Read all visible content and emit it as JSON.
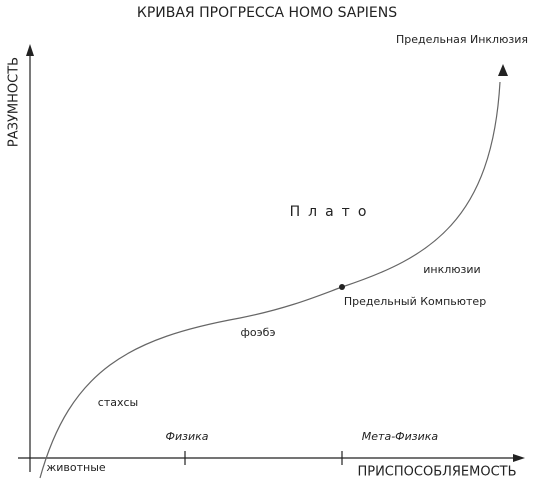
{
  "title": "КРИВАЯ ПРОГРЕССА HOMO SAPIENS",
  "axes": {
    "y_label": "РАЗУМНОСТЬ",
    "x_label": "ПРИСПОСОБЛЯЕМОСТЬ"
  },
  "x_labels": [
    "животные",
    "Физика",
    "Мета-Физика"
  ],
  "curve_labels": {
    "end": "Предельная Инклюзия",
    "plateau": "Плато",
    "inclusions": "инклюзии",
    "computer": "Предельный Компьютер",
    "phoebe": "фоэбэ",
    "stakhsy": "стахсы"
  }
}
